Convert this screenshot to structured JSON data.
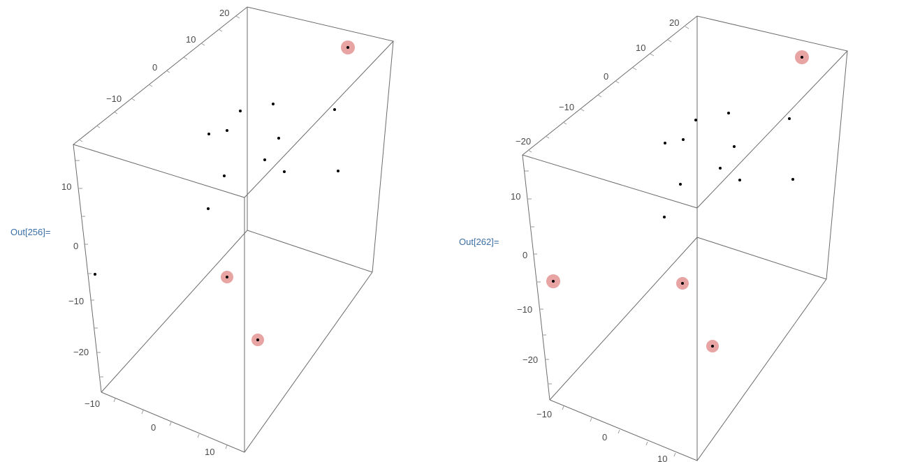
{
  "outputs": [
    {
      "label": "Out[256]=",
      "axis_labels": {
        "top": [
          "20",
          "10",
          "0",
          "−10"
        ],
        "left": [
          "10",
          "0",
          "−10",
          "−20"
        ],
        "bottom": [
          "−10",
          "0",
          "10"
        ]
      }
    },
    {
      "label": "Out[262]=",
      "axis_labels": {
        "top": [
          "20",
          "10",
          "0",
          "−10",
          "−20"
        ],
        "left": [
          "10",
          "0",
          "−10",
          "−20"
        ],
        "bottom": [
          "−10",
          "0",
          "10"
        ]
      }
    }
  ],
  "colors": {
    "label": "#3a6ea5",
    "highlight": "#e8a3a3",
    "point": "#000000",
    "frame": "#6b6b6b"
  }
}
